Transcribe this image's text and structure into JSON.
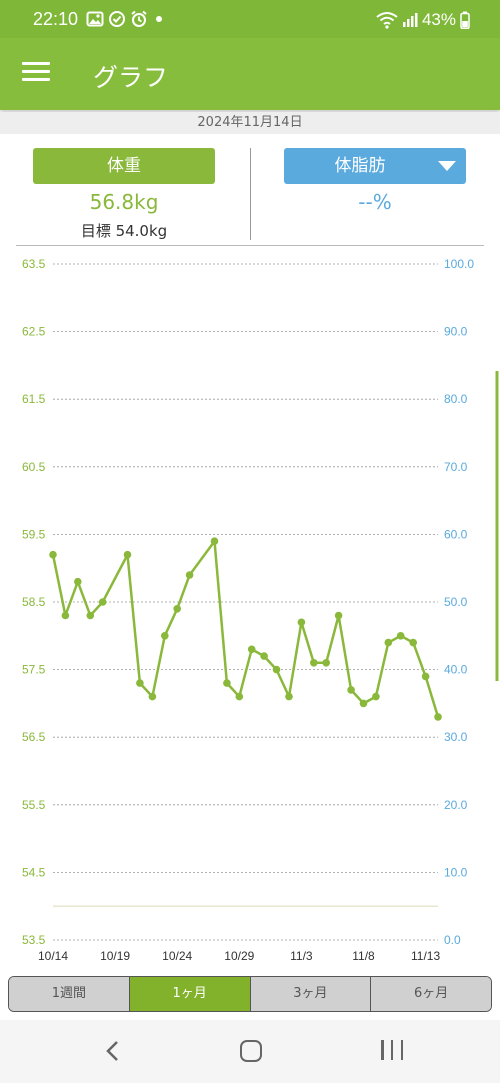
{
  "status_bar": {
    "time": "22:10",
    "battery": "43%",
    "icons": [
      "image-icon",
      "check-clock-icon",
      "alarm-icon",
      "notification-dot-icon",
      "wifi-icon",
      "signal-icon",
      "battery-icon"
    ]
  },
  "app_bar": {
    "title": "グラフ",
    "menu_icon": "hamburger-menu-icon"
  },
  "date_bar": {
    "date": "2024年11月14日"
  },
  "summary": {
    "weight_label": "体重",
    "weight_value": "56.8kg",
    "weight_goal": "目標 54.0kg",
    "fat_label": "体脂肪",
    "fat_value": "--%"
  },
  "colors": {
    "appbar": "#87bd3c",
    "weight": "#8ab83b",
    "fat": "#5aaade",
    "active_tab": "#82b22b"
  },
  "chart_data": {
    "type": "line",
    "x": [
      "10/14",
      "10/15",
      "10/16",
      "10/17",
      "10/18",
      "10/19",
      "10/20",
      "10/21",
      "10/22",
      "10/23",
      "10/24",
      "10/25",
      "10/26",
      "10/27",
      "10/28",
      "10/29",
      "10/30",
      "10/31",
      "11/1",
      "11/2",
      "11/3",
      "11/4",
      "11/5",
      "11/6",
      "11/7",
      "11/8",
      "11/9",
      "11/10",
      "11/11",
      "11/12",
      "11/13",
      "11/14"
    ],
    "series": [
      {
        "values": [
          59.2,
          58.3,
          58.8,
          58.3,
          58.5,
          null,
          59.2,
          57.3,
          57.1,
          58.0,
          58.4,
          58.9,
          null,
          59.4,
          57.3,
          57.1,
          57.8,
          57.7,
          57.5,
          57.1,
          58.2,
          57.6,
          57.6,
          58.3,
          57.2,
          57.0,
          57.1,
          57.9,
          58.0,
          57.9,
          57.4,
          56.8
        ]
      }
    ],
    "x_tick_labels": [
      "10/14",
      "10/19",
      "10/24",
      "10/29",
      "11/3",
      "11/8",
      "11/13"
    ],
    "y_left_ticks": [
      "63.5",
      "62.5",
      "61.5",
      "60.5",
      "59.5",
      "58.5",
      "57.5",
      "56.5",
      "55.5",
      "54.5",
      "53.5"
    ],
    "y_right_ticks": [
      "100.0",
      "90.0",
      "80.0",
      "70.0",
      "60.0",
      "50.0",
      "40.0",
      "30.0",
      "20.0",
      "10.0",
      "0.0"
    ],
    "ylim_left": [
      53.5,
      63.5
    ],
    "ylim_right": [
      0,
      100
    ],
    "goal": 54.0,
    "grid": true
  },
  "range_tabs": [
    {
      "label": "1週間",
      "active": false
    },
    {
      "label": "1ヶ月",
      "active": true
    },
    {
      "label": "3ヶ月",
      "active": false
    },
    {
      "label": "6ヶ月",
      "active": false
    }
  ]
}
